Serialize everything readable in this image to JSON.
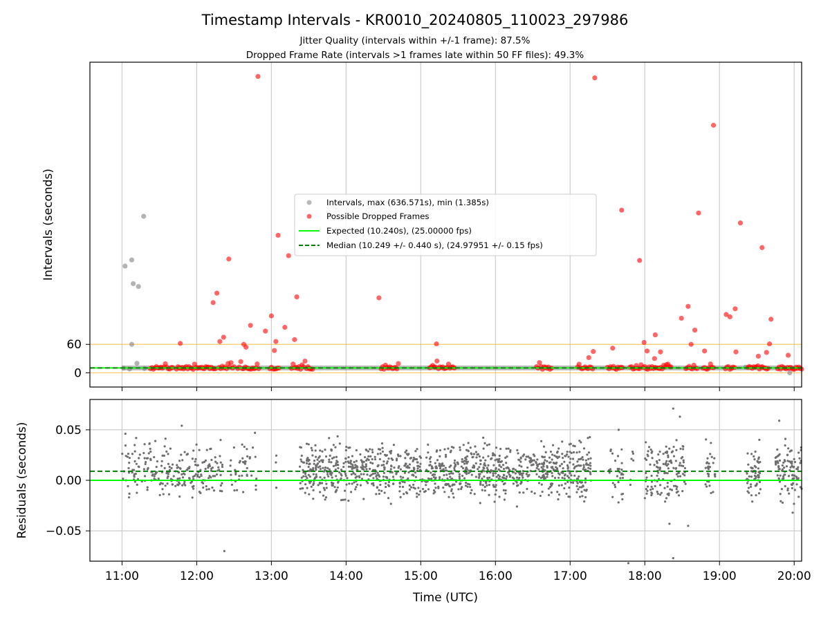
{
  "title": "Timestamp Intervals - KR0010_20240805_110023_297986",
  "subtitle1": "Jitter Quality (intervals within +/-1 frame): 87.5%",
  "subtitle2": "Dropped Frame Rate (intervals >1 frames late within 50 FF files): 49.3%",
  "colors": {
    "intervals": "#808080",
    "dropped": "#ff0000",
    "expected": "#00ff00",
    "median": "#008000",
    "threshold": "#ffa500",
    "residual": "#6e6e6e",
    "grid": "#cccccc"
  },
  "chart_data": [
    {
      "type": "scatter",
      "ylabel": "Intervals (seconds)",
      "xlabel": "",
      "xlim": [
        10.57,
        20.1
      ],
      "ylim": [
        -30,
        655
      ],
      "yticks": [
        0,
        60
      ],
      "ytick_labels": [
        "0",
        "60"
      ],
      "grid": "x only",
      "legend_position": "center",
      "legend": {
        "intervals": "Intervals, max (636.571s), min (1.385s)",
        "dropped": "Possible Dropped Frames",
        "expected": "Expected (10.240s), (25.00000 fps)",
        "median": "Median (10.249 +/- 0.440 s), (24.97951 +/- 0.15 fps)"
      },
      "expected_interval": 10.24,
      "median_interval": 10.249,
      "threshold_lines": [
        0,
        60
      ],
      "normal_intervals": [
        [
          11.04,
          225
        ],
        [
          11.15,
          188
        ],
        [
          11.13,
          238
        ],
        [
          11.22,
          182
        ],
        [
          11.29,
          330
        ],
        [
          11.13,
          60
        ],
        [
          11.2,
          20
        ],
        [
          11.02,
          10
        ],
        [
          11.1,
          8
        ],
        [
          11.3,
          9
        ],
        [
          19.94,
          0
        ],
        [
          19.35,
          12
        ],
        [
          11.5,
          10
        ],
        [
          13.5,
          10
        ]
      ],
      "dropped_frames": [
        [
          12.82,
          625
        ],
        [
          17.33,
          622
        ],
        [
          18.92,
          522
        ],
        [
          17.69,
          343
        ],
        [
          18.72,
          337
        ],
        [
          19.28,
          316
        ],
        [
          13.09,
          290
        ],
        [
          19.57,
          264
        ],
        [
          13.23,
          247
        ],
        [
          12.43,
          240
        ],
        [
          17.93,
          237
        ],
        [
          14.44,
          158
        ],
        [
          13.34,
          160
        ],
        [
          19.21,
          135
        ],
        [
          18.58,
          140
        ],
        [
          12.27,
          168
        ],
        [
          12.22,
          148
        ],
        [
          18.49,
          115
        ],
        [
          19.09,
          123
        ],
        [
          19.14,
          118
        ],
        [
          13.0,
          120
        ],
        [
          19.69,
          113
        ],
        [
          13.18,
          96
        ],
        [
          12.72,
          100
        ],
        [
          18.67,
          90
        ],
        [
          18.14,
          80
        ],
        [
          12.92,
          88
        ],
        [
          12.36,
          75
        ],
        [
          13.31,
          70
        ],
        [
          17.99,
          64
        ],
        [
          12.31,
          66
        ],
        [
          13.06,
          66
        ],
        [
          12.63,
          60
        ],
        [
          11.78,
          62
        ],
        [
          15.21,
          61
        ],
        [
          18.62,
          60
        ],
        [
          19.67,
          61
        ],
        [
          12.66,
          54
        ],
        [
          17.57,
          52
        ],
        [
          19.63,
          43
        ],
        [
          17.31,
          45
        ],
        [
          13.04,
          47
        ],
        [
          18.03,
          46
        ],
        [
          17.25,
          32
        ],
        [
          19.22,
          44
        ],
        [
          18.8,
          46
        ],
        [
          18.21,
          44
        ],
        [
          19.92,
          37
        ],
        [
          18.13,
          30
        ],
        [
          19.52,
          35
        ]
      ],
      "dropped_cluster_ranges": [
        [
          11.38,
          11.68
        ],
        [
          11.73,
          12.25
        ],
        [
          12.3,
          12.5
        ],
        [
          12.55,
          12.83
        ],
        [
          12.98,
          13.1
        ],
        [
          13.27,
          13.55
        ],
        [
          14.47,
          14.7
        ],
        [
          15.12,
          15.45
        ],
        [
          16.55,
          16.75
        ],
        [
          17.1,
          17.3
        ],
        [
          17.5,
          17.7
        ],
        [
          17.8,
          17.95
        ],
        [
          17.98,
          18.35
        ],
        [
          18.55,
          18.7
        ],
        [
          18.78,
          18.92
        ],
        [
          19.08,
          19.2
        ],
        [
          19.38,
          19.65
        ],
        [
          19.78,
          20.1
        ]
      ],
      "gray_band_ranges": [
        [
          11.0,
          20.1
        ]
      ]
    },
    {
      "type": "scatter",
      "ylabel": "Residuals (seconds)",
      "xlabel": "Time (UTC)",
      "xlim": [
        10.57,
        20.1
      ],
      "ylim": [
        -0.08,
        0.08
      ],
      "yticks": [
        0.05,
        0.0,
        -0.05
      ],
      "ytick_labels": [
        "0.05",
        "0.00",
        "−0.05"
      ],
      "xticks": [
        11,
        12,
        13,
        14,
        15,
        16,
        17,
        18,
        19,
        20
      ],
      "xtick_labels": [
        "11:00",
        "12:00",
        "13:00",
        "14:00",
        "15:00",
        "16:00",
        "17:00",
        "18:00",
        "19:00",
        "20:00"
      ],
      "grid": "both",
      "expected_residual": 0.0,
      "median_residual": 0.009,
      "residual_spread": 0.013,
      "residual_density_ranges": [
        [
          11.0,
          12.35,
          230
        ],
        [
          12.45,
          12.8,
          40
        ],
        [
          13.05,
          13.1,
          3
        ],
        [
          13.38,
          17.28,
          1100
        ],
        [
          17.52,
          17.72,
          30
        ],
        [
          17.8,
          17.85,
          6
        ],
        [
          18.0,
          18.55,
          130
        ],
        [
          18.8,
          18.95,
          30
        ],
        [
          19.35,
          19.55,
          60
        ],
        [
          19.75,
          20.1,
          100
        ]
      ],
      "residual_outliers": [
        [
          12.37,
          -0.07
        ],
        [
          17.78,
          -0.082
        ],
        [
          18.38,
          -0.077
        ],
        [
          18.38,
          0.071
        ],
        [
          18.47,
          0.063
        ],
        [
          19.8,
          0.059
        ],
        [
          11.8,
          0.054
        ],
        [
          19.98,
          -0.032
        ],
        [
          12.78,
          0.047
        ],
        [
          18.58,
          -0.045
        ],
        [
          18.33,
          -0.043
        ],
        [
          17.65,
          0.05
        ]
      ]
    }
  ]
}
